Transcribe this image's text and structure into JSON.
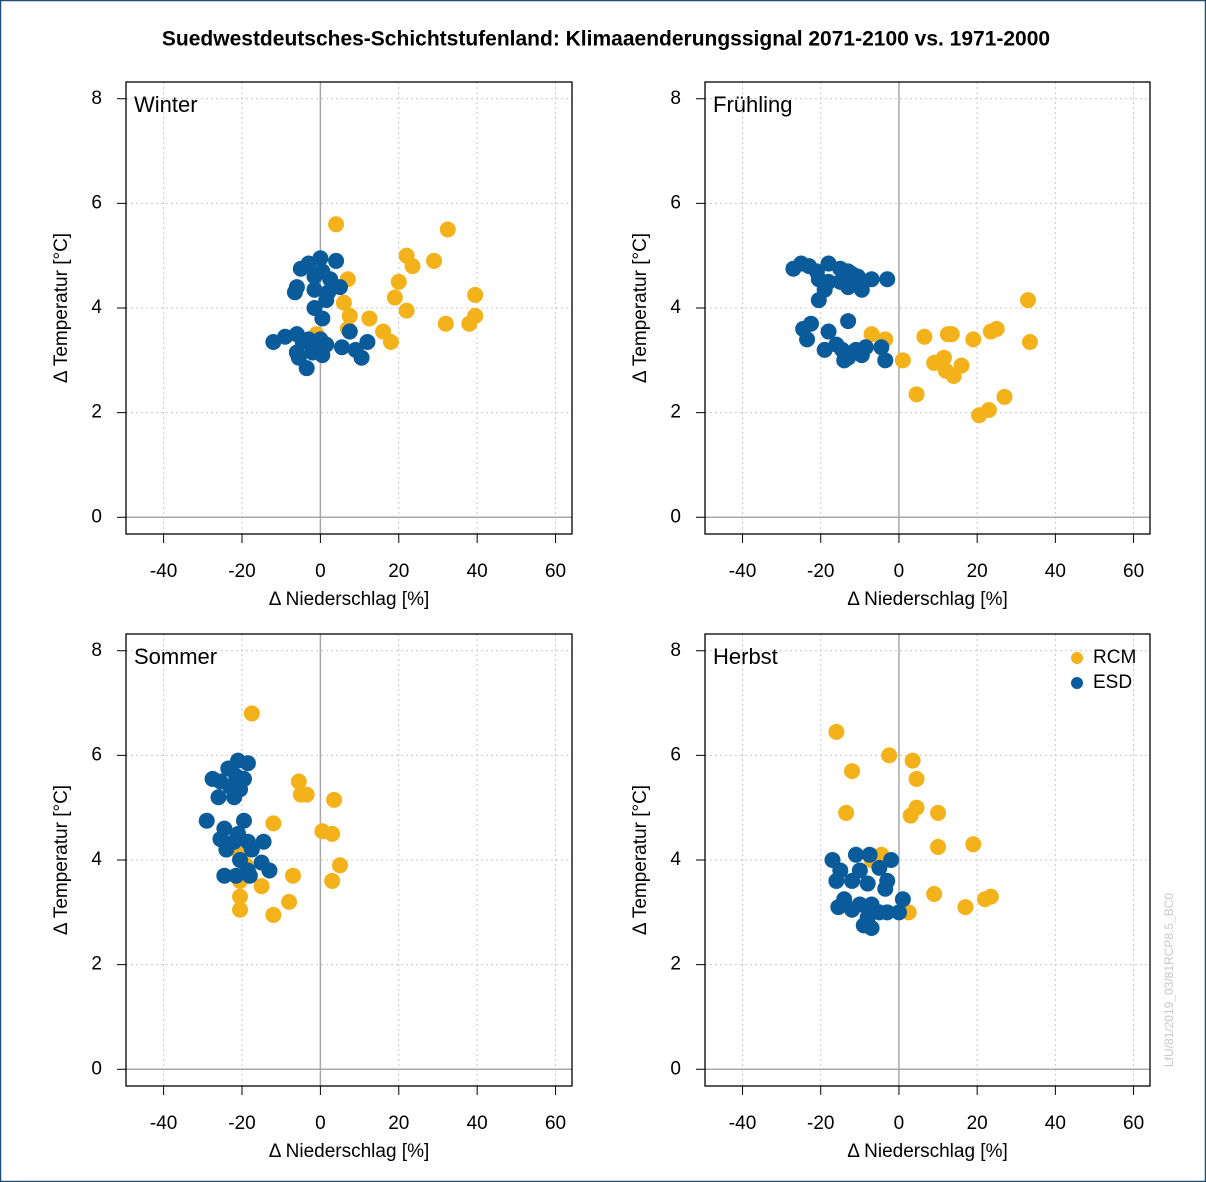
{
  "title": "Suedwestdeutsches-Schichtstufenland: Klimaaenderungssignal 2071-2100 vs. 1971-2000",
  "watermark": "LfU/81/2019_03/81RCP8.5_BC0",
  "chart_data": [
    {
      "type": "scatter",
      "title": "Winter",
      "xlabel": "Δ Niederschlag [%]",
      "ylabel": "Δ Temperatur [°C]",
      "xlim": [
        -49.6,
        64.2
      ],
      "ylim": [
        -0.32,
        8.32
      ],
      "xticks": [
        -40,
        -20,
        0,
        20,
        40,
        60
      ],
      "yticks": [
        0,
        2,
        4,
        6,
        8
      ],
      "grid": true,
      "zero_lines": true,
      "series": [
        {
          "name": "RCM",
          "color": "#f4b21a",
          "x": [
            4,
            32.5,
            22,
            23.5,
            29,
            7,
            20,
            39.5,
            19,
            6,
            22,
            7.5,
            12.5,
            32,
            38,
            39.5,
            16,
            7,
            18,
            -1
          ],
          "values": [
            5.6,
            5.5,
            5.0,
            4.8,
            4.9,
            4.55,
            4.5,
            4.25,
            4.2,
            4.1,
            3.95,
            3.85,
            3.8,
            3.7,
            3.7,
            3.85,
            3.55,
            3.6,
            3.35,
            3.5
          ]
        },
        {
          "name": "ESD",
          "color": "#0a5b9a",
          "x": [
            0,
            4,
            -3,
            -5,
            0.5,
            -1.5,
            2.5,
            -6,
            5,
            -1.5,
            2,
            -6.5,
            1.5,
            -1.5,
            0.5,
            7.5,
            -9,
            -6,
            -3,
            0,
            -4.5,
            1.5,
            12,
            5.5,
            9,
            -6,
            -2,
            0.5,
            10.5,
            -5.5,
            -3.5,
            -12
          ],
          "values": [
            4.95,
            4.9,
            4.85,
            4.75,
            4.7,
            4.6,
            4.55,
            4.4,
            4.4,
            4.35,
            4.3,
            4.3,
            4.15,
            4.0,
            3.8,
            3.55,
            3.45,
            3.5,
            3.4,
            3.4,
            3.35,
            3.3,
            3.35,
            3.25,
            3.2,
            3.15,
            3.15,
            3.1,
            3.05,
            3.05,
            2.85,
            3.35
          ]
        }
      ]
    },
    {
      "type": "scatter",
      "title": "Frühling",
      "xlabel": "Δ Niederschlag [%]",
      "ylabel": "Δ Temperatur [°C]",
      "xlim": [
        -49.6,
        64.2
      ],
      "ylim": [
        -0.32,
        8.32
      ],
      "xticks": [
        -40,
        -20,
        0,
        20,
        40,
        60
      ],
      "yticks": [
        0,
        2,
        4,
        6,
        8
      ],
      "grid": true,
      "zero_lines": true,
      "series": [
        {
          "name": "RCM",
          "color": "#f4b21a",
          "x": [
            33,
            33.5,
            25,
            23.5,
            12.5,
            13.5,
            6.5,
            19,
            -7,
            -3.5,
            1,
            11.5,
            9,
            16,
            12,
            14,
            4.5,
            27,
            23,
            20.5
          ],
          "values": [
            4.15,
            3.35,
            3.6,
            3.55,
            3.5,
            3.5,
            3.45,
            3.4,
            3.5,
            3.4,
            3.0,
            3.05,
            2.95,
            2.9,
            2.8,
            2.7,
            2.35,
            2.3,
            2.05,
            1.95
          ]
        },
        {
          "name": "ESD",
          "color": "#0a5b9a",
          "x": [
            -27,
            -25,
            -23,
            -21,
            -18,
            -20.5,
            -15,
            -13,
            -12,
            -10.5,
            -18,
            -15,
            -7,
            -3,
            -9.5,
            -20.5,
            -19,
            -13,
            -24.5,
            -22.5,
            -18,
            -13,
            -23.5,
            -16,
            -19,
            -14.5,
            -11,
            -8.5,
            -4.5,
            -13,
            -9.5,
            -14,
            -3.5
          ],
          "values": [
            4.75,
            4.85,
            4.8,
            4.7,
            4.85,
            4.55,
            4.75,
            4.7,
            4.65,
            4.6,
            4.5,
            4.5,
            4.55,
            4.55,
            4.35,
            4.15,
            4.35,
            4.4,
            3.6,
            3.7,
            3.55,
            3.75,
            3.4,
            3.3,
            3.2,
            3.2,
            3.2,
            3.25,
            3.25,
            3.05,
            3.1,
            3.0,
            3.0
          ]
        }
      ]
    },
    {
      "type": "scatter",
      "title": "Sommer",
      "xlabel": "Δ Niederschlag [%]",
      "ylabel": "Δ Temperatur [°C]",
      "xlim": [
        -49.6,
        64.2
      ],
      "ylim": [
        -0.32,
        8.32
      ],
      "xticks": [
        -40,
        -20,
        0,
        20,
        40,
        60
      ],
      "yticks": [
        0,
        2,
        4,
        6,
        8
      ],
      "grid": true,
      "zero_lines": true,
      "series": [
        {
          "name": "RCM",
          "color": "#f4b21a",
          "x": [
            -17.5,
            -5.5,
            -5,
            -3.5,
            3.5,
            -12,
            0.5,
            3,
            -20.5,
            5,
            -7,
            3,
            -15,
            -20.5,
            -20.5,
            -8,
            -20.5,
            -12,
            -19,
            -18
          ],
          "values": [
            6.8,
            5.5,
            5.25,
            5.25,
            5.15,
            4.7,
            4.55,
            4.5,
            4.1,
            3.9,
            3.7,
            3.6,
            3.5,
            3.6,
            3.3,
            3.2,
            3.05,
            2.95,
            3.9,
            4.2
          ]
        },
        {
          "name": "ESD",
          "color": "#0a5b9a",
          "x": [
            -21,
            -18.5,
            -23.5,
            -27.5,
            -25.5,
            -21.5,
            -19.5,
            -23,
            -20.5,
            -26,
            -22,
            -29,
            -19.5,
            -24.5,
            -21,
            -25.5,
            -22,
            -18.5,
            -14.5,
            -24,
            -17.5,
            -20.5,
            -15,
            -18.5,
            -13,
            -21.5,
            -24.5,
            -18
          ],
          "values": [
            5.9,
            5.85,
            5.75,
            5.55,
            5.5,
            5.6,
            5.55,
            5.4,
            5.35,
            5.2,
            5.2,
            4.75,
            4.75,
            4.6,
            4.5,
            4.4,
            4.35,
            4.35,
            4.35,
            4.2,
            4.2,
            4.0,
            3.95,
            3.8,
            3.8,
            3.7,
            3.7,
            3.7
          ]
        }
      ]
    },
    {
      "type": "scatter",
      "title": "Herbst",
      "xlabel": "Δ Niederschlag [%]",
      "ylabel": "Δ Temperatur [°C]",
      "xlim": [
        -49.6,
        64.2
      ],
      "ylim": [
        -0.32,
        8.32
      ],
      "xticks": [
        -40,
        -20,
        0,
        20,
        40,
        60
      ],
      "yticks": [
        0,
        2,
        4,
        6,
        8
      ],
      "grid": true,
      "zero_lines": true,
      "legend": "top-right",
      "series": [
        {
          "name": "RCM",
          "color": "#f4b21a",
          "x": [
            -16,
            -12,
            -2.5,
            3.5,
            4.5,
            4.5,
            -13.5,
            10,
            3,
            10,
            19,
            -4.5,
            -7,
            9,
            23.5,
            22,
            17,
            2.5
          ],
          "values": [
            6.45,
            5.7,
            6.0,
            5.9,
            5.55,
            5.0,
            4.9,
            4.9,
            4.85,
            4.25,
            4.3,
            4.1,
            4.0,
            3.35,
            3.3,
            3.25,
            3.1,
            3.0
          ]
        },
        {
          "name": "ESD",
          "color": "#0a5b9a",
          "x": [
            -17,
            -11,
            -7.5,
            -2,
            -15,
            -10,
            -5,
            -16,
            -12,
            -3,
            -8,
            -3.5,
            -14,
            -10,
            1,
            -15.5,
            -12,
            -7,
            -3,
            0,
            -8,
            -5,
            -9,
            -7
          ],
          "values": [
            4.0,
            4.1,
            4.1,
            4.0,
            3.8,
            3.8,
            3.85,
            3.6,
            3.6,
            3.6,
            3.55,
            3.45,
            3.25,
            3.15,
            3.25,
            3.1,
            3.05,
            3.15,
            3.0,
            3.0,
            2.9,
            3.0,
            2.75,
            2.7
          ]
        }
      ]
    }
  ]
}
